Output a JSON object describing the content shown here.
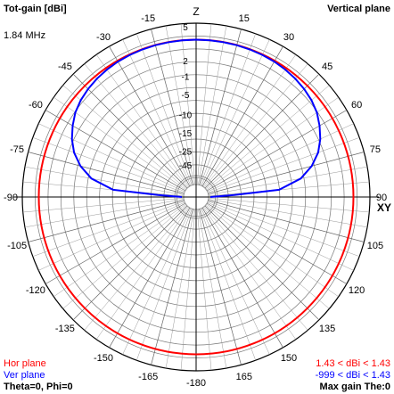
{
  "header": {
    "left_title": "Tot-gain [dBi]",
    "right_title": "Vertical plane",
    "frequency": "1.84 MHz"
  },
  "legend": {
    "hor_label": "Hor plane",
    "ver_label": "Ver plane",
    "hor_range": "1.43 < dBi < 1.43",
    "ver_range": "-999 < dBi < 1.43",
    "hor_color": "#ff0000",
    "ver_color": "#0000ff"
  },
  "footer": {
    "angles": "Theta=0, Phi=0",
    "max_gain": "Max gain The:0"
  },
  "chart_data": {
    "type": "polar",
    "title": "Tot-gain [dBi]",
    "plane": "Vertical plane",
    "angle_labels": [
      "Z",
      "15",
      "30",
      "45",
      "60",
      "75",
      "90",
      "105",
      "120",
      "135",
      "150",
      "165",
      "-180",
      "-165",
      "-150",
      "-135",
      "-120",
      "-105",
      "-90",
      "-75",
      "-60",
      "-45",
      "-30",
      "-15"
    ],
    "side_labels": {
      "right": "XY"
    },
    "radial_tick_labels": [
      "5",
      "2",
      "-1",
      "-5",
      "-10",
      "-15",
      "-25",
      "-45"
    ],
    "series": [
      {
        "name": "Hor plane",
        "color": "#ff0000",
        "kind": "circle",
        "gain_dbi": 1.43
      },
      {
        "name": "Ver plane",
        "color": "#0000ff",
        "points": [
          [
            -90,
            -999
          ],
          [
            -87,
            -25
          ],
          [
            -85,
            -12.3
          ],
          [
            -80,
            -7.1
          ],
          [
            -75,
            -4.5
          ],
          [
            -70,
            -2.9
          ],
          [
            -65,
            -1.8
          ],
          [
            -60,
            -1.0
          ],
          [
            -55,
            -0.3
          ],
          [
            -50,
            0.2
          ],
          [
            -45,
            0.6
          ],
          [
            -40,
            0.9
          ],
          [
            -35,
            1.1
          ],
          [
            -30,
            1.25
          ],
          [
            -25,
            1.33
          ],
          [
            -20,
            1.38
          ],
          [
            -15,
            1.41
          ],
          [
            -10,
            1.42
          ],
          [
            -5,
            1.43
          ],
          [
            0,
            1.43
          ],
          [
            5,
            1.43
          ],
          [
            10,
            1.42
          ],
          [
            15,
            1.41
          ],
          [
            20,
            1.38
          ],
          [
            25,
            1.33
          ],
          [
            30,
            1.25
          ],
          [
            35,
            1.1
          ],
          [
            40,
            0.9
          ],
          [
            45,
            0.6
          ],
          [
            50,
            0.2
          ],
          [
            55,
            -0.3
          ],
          [
            60,
            -1.0
          ],
          [
            65,
            -1.8
          ],
          [
            70,
            -2.9
          ],
          [
            75,
            -4.5
          ],
          [
            80,
            -7.1
          ],
          [
            85,
            -12.3
          ],
          [
            87,
            -25
          ],
          [
            90,
            -999
          ]
        ]
      }
    ]
  }
}
